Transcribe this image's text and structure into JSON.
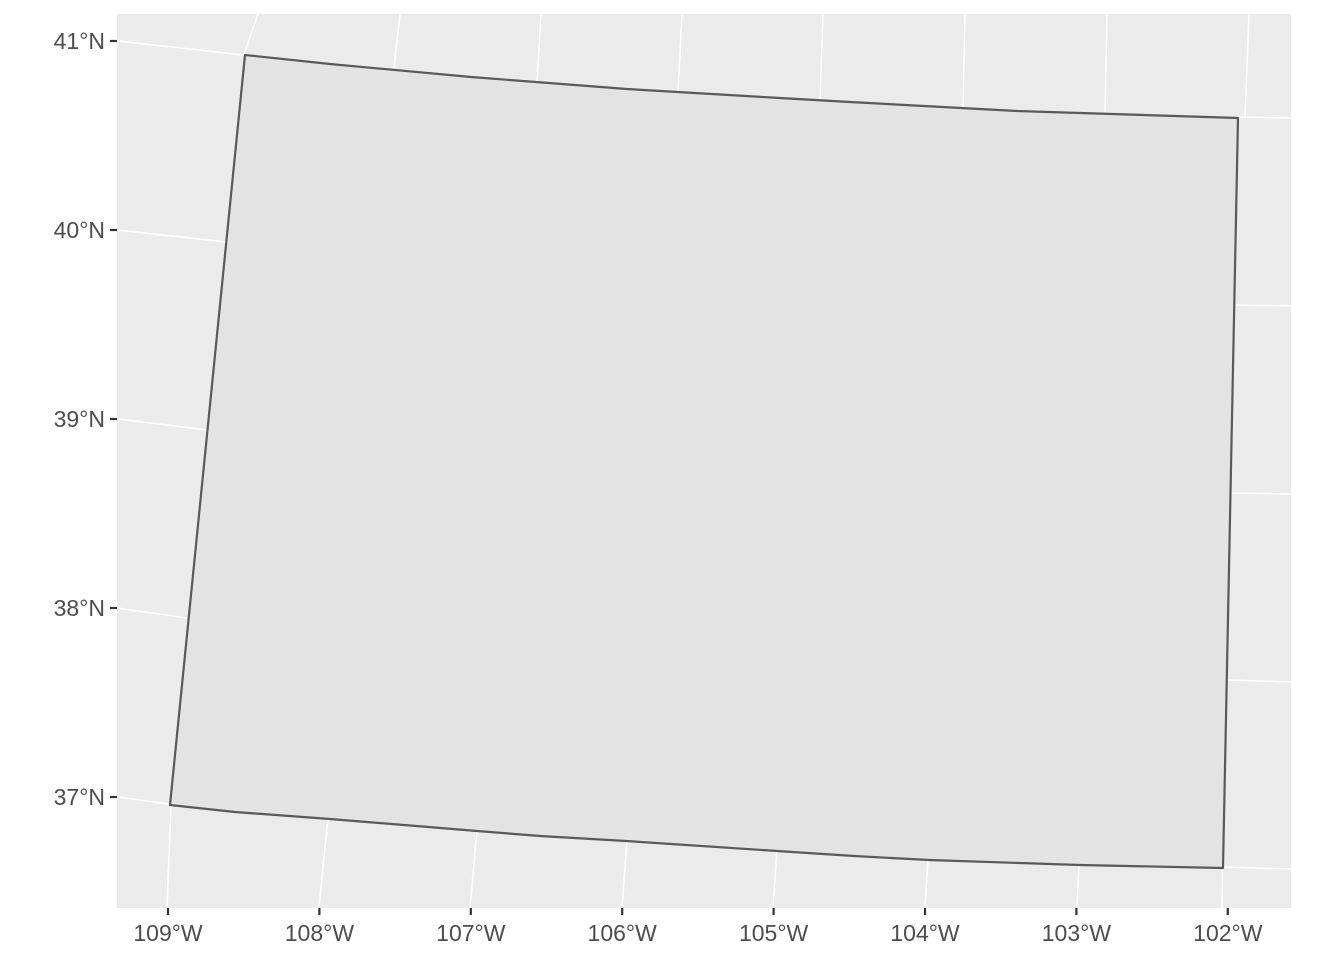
{
  "map": {
    "state_fill": "#e3e3e3",
    "state_outline": "#595959",
    "panel_background": "#ebebeb",
    "grid_color": "#ffffff",
    "label_color": "#4d4d4d",
    "y_axis": {
      "ticks": [
        {
          "value": 41,
          "label": "41°N"
        },
        {
          "value": 40,
          "label": "40°N"
        },
        {
          "value": 39,
          "label": "39°N"
        },
        {
          "value": 38,
          "label": "38°N"
        },
        {
          "value": 37,
          "label": "37°N"
        }
      ]
    },
    "x_axis": {
      "ticks": [
        {
          "value": -109,
          "label": "109°W"
        },
        {
          "value": -108,
          "label": "108°W"
        },
        {
          "value": -107,
          "label": "107°W"
        },
        {
          "value": -106,
          "label": "106°W"
        },
        {
          "value": -105,
          "label": "105°W"
        },
        {
          "value": -104,
          "label": "104°W"
        },
        {
          "value": -103,
          "label": "103°W"
        },
        {
          "value": -102,
          "label": "102°W"
        }
      ]
    }
  }
}
